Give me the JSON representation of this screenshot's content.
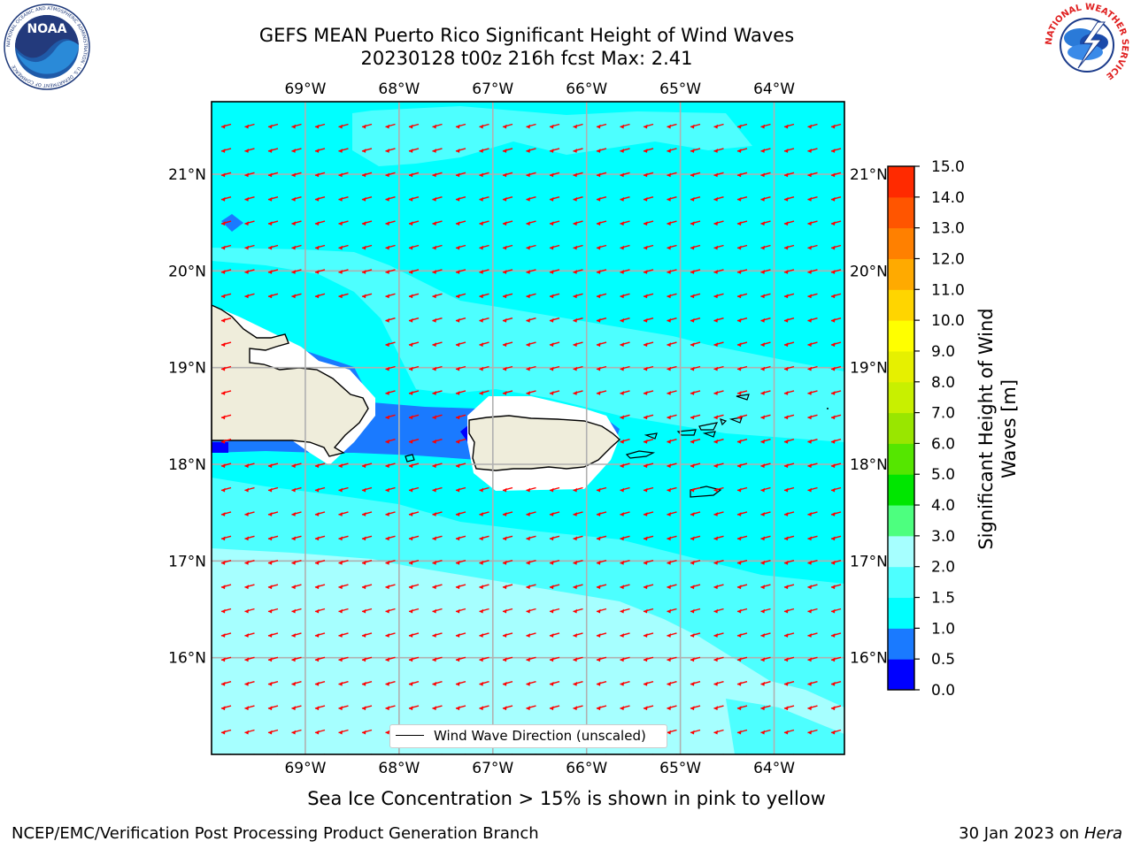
{
  "title": {
    "line1": "GEFS MEAN Puerto Rico Significant Height of Wind Waves",
    "line2": "20230128 t00z 216h fcst   Max: 2.41"
  },
  "logos": {
    "noaa_text": "NOAA",
    "noaa_ring_text": "NATIONAL OCEANIC AND ATMOSPHERIC ADMINISTRATION · U.S. DEPARTMENT OF COMMERCE",
    "nws_ring_text": "NATIONAL WEATHER SERVICE"
  },
  "map": {
    "lon_labels": [
      "69°W",
      "68°W",
      "67°W",
      "66°W",
      "65°W",
      "64°W"
    ],
    "lat_labels": [
      "21°N",
      "20°N",
      "19°N",
      "18°N",
      "17°N",
      "16°N"
    ],
    "lon_range": [
      -70,
      -63.25
    ],
    "lat_range": [
      15,
      21.75
    ],
    "land_color": "#efeddb",
    "arrow_color": "#ff0000",
    "gridline_color": "#b0b0b0",
    "wave_direction": "westward"
  },
  "legend": {
    "label": "Wind Wave Direction (unscaled)"
  },
  "colorbar": {
    "label_line1": "Significant Height of Wind",
    "label_line2": "Waves [m]",
    "ticks": [
      "0.0",
      "0.5",
      "1.0",
      "1.5",
      "2.0",
      "3.0",
      "4.0",
      "5.0",
      "6.0",
      "7.0",
      "8.0",
      "9.0",
      "10.0",
      "11.0",
      "12.0",
      "13.0",
      "14.0",
      "15.0"
    ],
    "colors": [
      "#0000ff",
      "#1a7aff",
      "#00ffff",
      "#4dffff",
      "#a6ffff",
      "#4dff7f",
      "#00e600",
      "#55e600",
      "#99e600",
      "#c8f000",
      "#e6f000",
      "#ffff00",
      "#ffd500",
      "#ffaa00",
      "#ff8000",
      "#ff5500",
      "#ff2a00",
      "#ff0000"
    ]
  },
  "subtitle": "Sea Ice Concentration > 15% is shown in pink to yellow",
  "footer": {
    "left": "NCEP/EMC/Verification Post Processing Product Generation Branch",
    "date": "30 Jan 2023 on",
    "host": "Hera"
  }
}
